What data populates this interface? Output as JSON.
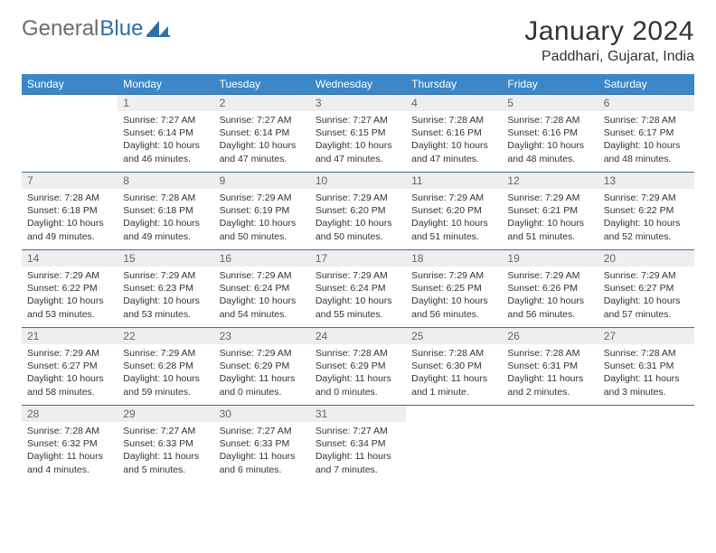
{
  "logo": {
    "text_gray": "General",
    "text_blue": "Blue"
  },
  "header": {
    "month_title": "January 2024",
    "location": "Paddhari, Gujarat, India"
  },
  "colors": {
    "header_bg": "#3b87c8",
    "header_text": "#ffffff",
    "daynum_bg": "#eeeeee",
    "daynum_text": "#666666",
    "rule": "#3b6e9b",
    "body_text": "#333333",
    "logo_gray": "#6c6c6c",
    "logo_blue": "#2f6fa7"
  },
  "weekdays": [
    "Sunday",
    "Monday",
    "Tuesday",
    "Wednesday",
    "Thursday",
    "Friday",
    "Saturday"
  ],
  "weeks": [
    [
      {
        "day": "",
        "sunrise": "",
        "sunset": "",
        "daylight": ""
      },
      {
        "day": "1",
        "sunrise": "Sunrise: 7:27 AM",
        "sunset": "Sunset: 6:14 PM",
        "daylight": "Daylight: 10 hours and 46 minutes."
      },
      {
        "day": "2",
        "sunrise": "Sunrise: 7:27 AM",
        "sunset": "Sunset: 6:14 PM",
        "daylight": "Daylight: 10 hours and 47 minutes."
      },
      {
        "day": "3",
        "sunrise": "Sunrise: 7:27 AM",
        "sunset": "Sunset: 6:15 PM",
        "daylight": "Daylight: 10 hours and 47 minutes."
      },
      {
        "day": "4",
        "sunrise": "Sunrise: 7:28 AM",
        "sunset": "Sunset: 6:16 PM",
        "daylight": "Daylight: 10 hours and 47 minutes."
      },
      {
        "day": "5",
        "sunrise": "Sunrise: 7:28 AM",
        "sunset": "Sunset: 6:16 PM",
        "daylight": "Daylight: 10 hours and 48 minutes."
      },
      {
        "day": "6",
        "sunrise": "Sunrise: 7:28 AM",
        "sunset": "Sunset: 6:17 PM",
        "daylight": "Daylight: 10 hours and 48 minutes."
      }
    ],
    [
      {
        "day": "7",
        "sunrise": "Sunrise: 7:28 AM",
        "sunset": "Sunset: 6:18 PM",
        "daylight": "Daylight: 10 hours and 49 minutes."
      },
      {
        "day": "8",
        "sunrise": "Sunrise: 7:28 AM",
        "sunset": "Sunset: 6:18 PM",
        "daylight": "Daylight: 10 hours and 49 minutes."
      },
      {
        "day": "9",
        "sunrise": "Sunrise: 7:29 AM",
        "sunset": "Sunset: 6:19 PM",
        "daylight": "Daylight: 10 hours and 50 minutes."
      },
      {
        "day": "10",
        "sunrise": "Sunrise: 7:29 AM",
        "sunset": "Sunset: 6:20 PM",
        "daylight": "Daylight: 10 hours and 50 minutes."
      },
      {
        "day": "11",
        "sunrise": "Sunrise: 7:29 AM",
        "sunset": "Sunset: 6:20 PM",
        "daylight": "Daylight: 10 hours and 51 minutes."
      },
      {
        "day": "12",
        "sunrise": "Sunrise: 7:29 AM",
        "sunset": "Sunset: 6:21 PM",
        "daylight": "Daylight: 10 hours and 51 minutes."
      },
      {
        "day": "13",
        "sunrise": "Sunrise: 7:29 AM",
        "sunset": "Sunset: 6:22 PM",
        "daylight": "Daylight: 10 hours and 52 minutes."
      }
    ],
    [
      {
        "day": "14",
        "sunrise": "Sunrise: 7:29 AM",
        "sunset": "Sunset: 6:22 PM",
        "daylight": "Daylight: 10 hours and 53 minutes."
      },
      {
        "day": "15",
        "sunrise": "Sunrise: 7:29 AM",
        "sunset": "Sunset: 6:23 PM",
        "daylight": "Daylight: 10 hours and 53 minutes."
      },
      {
        "day": "16",
        "sunrise": "Sunrise: 7:29 AM",
        "sunset": "Sunset: 6:24 PM",
        "daylight": "Daylight: 10 hours and 54 minutes."
      },
      {
        "day": "17",
        "sunrise": "Sunrise: 7:29 AM",
        "sunset": "Sunset: 6:24 PM",
        "daylight": "Daylight: 10 hours and 55 minutes."
      },
      {
        "day": "18",
        "sunrise": "Sunrise: 7:29 AM",
        "sunset": "Sunset: 6:25 PM",
        "daylight": "Daylight: 10 hours and 56 minutes."
      },
      {
        "day": "19",
        "sunrise": "Sunrise: 7:29 AM",
        "sunset": "Sunset: 6:26 PM",
        "daylight": "Daylight: 10 hours and 56 minutes."
      },
      {
        "day": "20",
        "sunrise": "Sunrise: 7:29 AM",
        "sunset": "Sunset: 6:27 PM",
        "daylight": "Daylight: 10 hours and 57 minutes."
      }
    ],
    [
      {
        "day": "21",
        "sunrise": "Sunrise: 7:29 AM",
        "sunset": "Sunset: 6:27 PM",
        "daylight": "Daylight: 10 hours and 58 minutes."
      },
      {
        "day": "22",
        "sunrise": "Sunrise: 7:29 AM",
        "sunset": "Sunset: 6:28 PM",
        "daylight": "Daylight: 10 hours and 59 minutes."
      },
      {
        "day": "23",
        "sunrise": "Sunrise: 7:29 AM",
        "sunset": "Sunset: 6:29 PM",
        "daylight": "Daylight: 11 hours and 0 minutes."
      },
      {
        "day": "24",
        "sunrise": "Sunrise: 7:28 AM",
        "sunset": "Sunset: 6:29 PM",
        "daylight": "Daylight: 11 hours and 0 minutes."
      },
      {
        "day": "25",
        "sunrise": "Sunrise: 7:28 AM",
        "sunset": "Sunset: 6:30 PM",
        "daylight": "Daylight: 11 hours and 1 minute."
      },
      {
        "day": "26",
        "sunrise": "Sunrise: 7:28 AM",
        "sunset": "Sunset: 6:31 PM",
        "daylight": "Daylight: 11 hours and 2 minutes."
      },
      {
        "day": "27",
        "sunrise": "Sunrise: 7:28 AM",
        "sunset": "Sunset: 6:31 PM",
        "daylight": "Daylight: 11 hours and 3 minutes."
      }
    ],
    [
      {
        "day": "28",
        "sunrise": "Sunrise: 7:28 AM",
        "sunset": "Sunset: 6:32 PM",
        "daylight": "Daylight: 11 hours and 4 minutes."
      },
      {
        "day": "29",
        "sunrise": "Sunrise: 7:27 AM",
        "sunset": "Sunset: 6:33 PM",
        "daylight": "Daylight: 11 hours and 5 minutes."
      },
      {
        "day": "30",
        "sunrise": "Sunrise: 7:27 AM",
        "sunset": "Sunset: 6:33 PM",
        "daylight": "Daylight: 11 hours and 6 minutes."
      },
      {
        "day": "31",
        "sunrise": "Sunrise: 7:27 AM",
        "sunset": "Sunset: 6:34 PM",
        "daylight": "Daylight: 11 hours and 7 minutes."
      },
      {
        "day": "",
        "sunrise": "",
        "sunset": "",
        "daylight": ""
      },
      {
        "day": "",
        "sunrise": "",
        "sunset": "",
        "daylight": ""
      },
      {
        "day": "",
        "sunrise": "",
        "sunset": "",
        "daylight": ""
      }
    ]
  ]
}
